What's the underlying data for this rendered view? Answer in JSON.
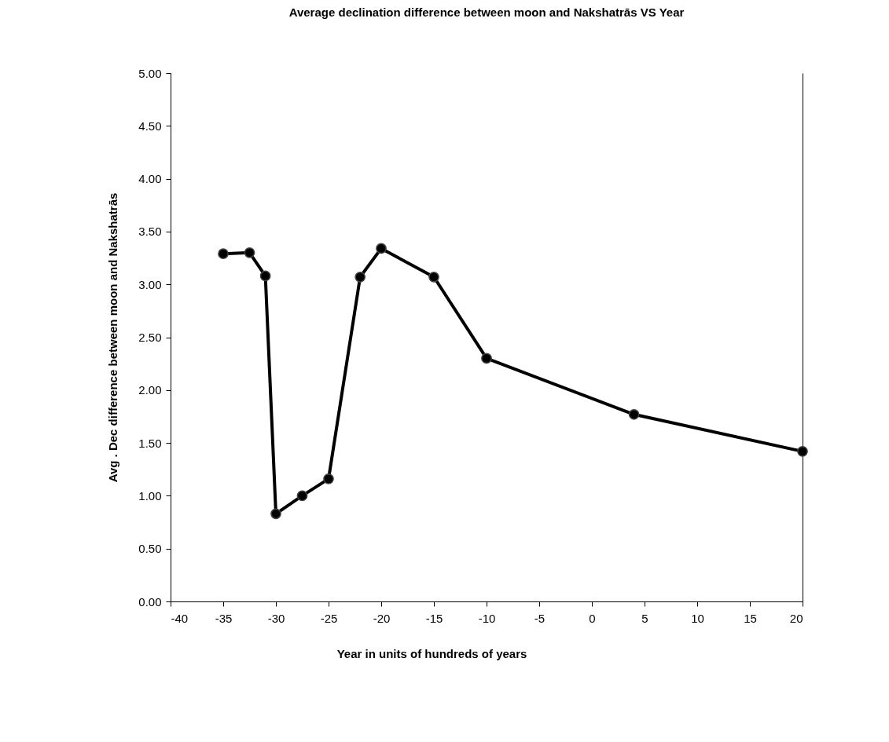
{
  "chart_data": {
    "type": "line",
    "title": "Average declination difference between moon and Nakshatrās VS Year",
    "xlabel": "Year in units of hundreds of years",
    "ylabel": "Avg . Dec difference between moon and Nakshatrās",
    "x": [
      -35,
      -32.5,
      -31,
      -30,
      -27.5,
      -25,
      -22,
      -20,
      -15,
      -10,
      4,
      20
    ],
    "series": [
      {
        "color": "#000000",
        "values": [
          3.29,
          3.3,
          3.08,
          0.83,
          1.0,
          1.16,
          3.07,
          3.34,
          3.07,
          2.3,
          1.77,
          1.42
        ]
      }
    ],
    "xlim": [
      -40,
      20
    ],
    "xticks": [
      -40,
      -35,
      -30,
      -25,
      -20,
      -15,
      -10,
      -5,
      0,
      5,
      10,
      15,
      20
    ],
    "ylim": [
      0,
      5
    ],
    "yticks": [
      {
        "value": 0,
        "label": "0.00"
      },
      {
        "value": 0.5,
        "label": "0.50"
      },
      {
        "value": 1,
        "label": "1.00"
      },
      {
        "value": 1.5,
        "label": "1.50"
      },
      {
        "value": 2,
        "label": "2.00"
      },
      {
        "value": 2.5,
        "label": "2.50"
      },
      {
        "value": 3,
        "label": "3.00"
      },
      {
        "value": 3.5,
        "label": "3.50"
      },
      {
        "value": 4,
        "label": "4.00"
      },
      {
        "value": 4.5,
        "label": "4.50"
      },
      {
        "value": 5,
        "label": "5.00"
      }
    ],
    "grid": false,
    "legend": false,
    "marker": "circle",
    "line_style": "solid"
  }
}
